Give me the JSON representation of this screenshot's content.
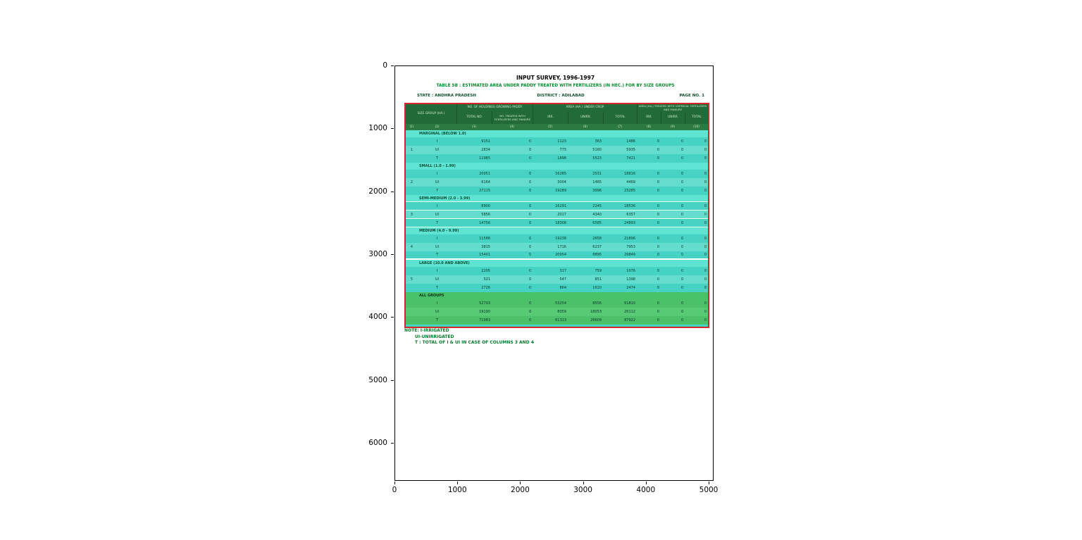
{
  "colors": {
    "accent_red": "#d62728",
    "header_green": "#226b38",
    "numrow_green": "#2c7a42",
    "section_cyan": "#5fe3d3",
    "row_teal": "#46d3c3",
    "row_teal_light": "#64ddcf",
    "all_green": "#4dc06a",
    "title_green": "#0a8a2f",
    "note_green": "#067a2d"
  },
  "figure": {
    "x_ticks": [
      "0",
      "1000",
      "2000",
      "3000",
      "4000",
      "5000"
    ],
    "y_ticks": [
      "0",
      "1000",
      "2000",
      "3000",
      "4000",
      "5000",
      "6000"
    ]
  },
  "chart_data": {
    "type": "table",
    "title": "INPUT SURVEY, 1996-1997",
    "subtitle": "TABLE 5B : ESTIMATED AREA UNDER PADDY TREATED WITH FERTILIZERS (IN HEC.) FOR BY SIZE GROUPS",
    "meta": {
      "state": "STATE : ANDHRA PRADESH",
      "district": "DISTRICT : ADILABAD",
      "page": "PAGE NO. 1"
    },
    "columns": {
      "size_group": "SIZE GROUP (HA.)",
      "holdings": "NO. OF HOLDINGS GROWING PADDY",
      "total_no": "TOTAL NO.",
      "treated": "NO. TREATED WITH FERTILIZERS AND MANURE",
      "area_crop": "AREA (HA.) UNDER CROP",
      "area_treated": "AREA (HA.) TREATED WITH CHEMICAL FERTILIZERS AND MANURE",
      "irr": "IRR.",
      "unirr": "UNIRR.",
      "total": "TOTAL"
    },
    "column_numbers": [
      "(1)",
      "(2)",
      "(3)",
      "(4)",
      "(5)",
      "(6)",
      "(7)",
      "(8)",
      "(9)",
      "(10)"
    ],
    "groups": [
      {
        "sno": "1",
        "label": "MARGINAL (BELOW 1.0)",
        "all": false,
        "rows": [
          {
            "type": "I",
            "values": [
              "9151",
              "0",
              "1123",
              "363",
              "1486",
              "0",
              "0",
              "0"
            ]
          },
          {
            "type": "UI",
            "values": [
              "2834",
              "0",
              "775",
              "5160",
              "5935",
              "0",
              "0",
              "0"
            ]
          },
          {
            "type": "T",
            "values": [
              "11985",
              "0",
              "1898",
              "5523",
              "7421",
              "0",
              "0",
              "0"
            ]
          }
        ]
      },
      {
        "sno": "2",
        "label": "SMALL (1.0 - 1.99)",
        "all": false,
        "rows": [
          {
            "type": "I",
            "values": [
              "20951",
              "0",
              "16285",
              "2531",
              "18816",
              "0",
              "0",
              "0"
            ]
          },
          {
            "type": "UI",
            "values": [
              "6164",
              "0",
              "3004",
              "1465",
              "4469",
              "0",
              "0",
              "0"
            ]
          },
          {
            "type": "T",
            "values": [
              "27115",
              "0",
              "19289",
              "3996",
              "23285",
              "0",
              "0",
              "0"
            ]
          }
        ]
      },
      {
        "sno": "3",
        "label": "SEMI-MEDIUM (2.0 - 3.99)",
        "all": false,
        "rows": [
          {
            "type": "I",
            "values": [
              "8900",
              "0",
              "16291",
              "2245",
              "18536",
              "0",
              "0",
              "0"
            ]
          },
          {
            "type": "UI",
            "values": [
              "5856",
              "0",
              "2017",
              "4340",
              "6357",
              "0",
              "0",
              "0"
            ]
          },
          {
            "type": "T",
            "values": [
              "14756",
              "0",
              "18308",
              "6585",
              "24893",
              "0",
              "0",
              "0"
            ]
          }
        ]
      },
      {
        "sno": "4",
        "label": "MEDIUM (4.0 - 9.99)",
        "all": false,
        "rows": [
          {
            "type": "I",
            "values": [
              "11586",
              "0",
              "19238",
              "2658",
              "21896",
              "0",
              "0",
              "0"
            ]
          },
          {
            "type": "UI",
            "values": [
              "3815",
              "0",
              "1716",
              "6237",
              "7953",
              "0",
              "0",
              "0"
            ]
          },
          {
            "type": "T",
            "values": [
              "15401",
              "0",
              "20954",
              "8895",
              "29849",
              "0",
              "0",
              "0"
            ]
          }
        ]
      },
      {
        "sno": "5",
        "label": "LARGE (10.0 AND ABOVE)",
        "all": false,
        "rows": [
          {
            "type": "I",
            "values": [
              "2205",
              "0",
              "317",
              "759",
              "1076",
              "0",
              "0",
              "0"
            ]
          },
          {
            "type": "UI",
            "values": [
              "521",
              "0",
              "547",
              "851",
              "1398",
              "0",
              "0",
              "0"
            ]
          },
          {
            "type": "T",
            "values": [
              "2726",
              "0",
              "864",
              "1610",
              "2474",
              "0",
              "0",
              "0"
            ]
          }
        ]
      },
      {
        "sno": "",
        "label": "ALL GROUPS",
        "all": true,
        "rows": [
          {
            "type": "I",
            "values": [
              "52793",
              "0",
              "53254",
              "8556",
              "61810",
              "0",
              "0",
              "0"
            ]
          },
          {
            "type": "UI",
            "values": [
              "19190",
              "0",
              "8059",
              "18053",
              "26112",
              "0",
              "0",
              "0"
            ]
          },
          {
            "type": "T",
            "values": [
              "71983",
              "0",
              "61313",
              "26609",
              "87922",
              "0",
              "0",
              "0"
            ]
          }
        ]
      }
    ],
    "notes": [
      "NOTE: I-IRRIGATED",
      "UI-UNIRRIGATED",
      "T : TOTAL OF I & UI IN CASE OF COLUMNS 3 AND 4"
    ]
  }
}
